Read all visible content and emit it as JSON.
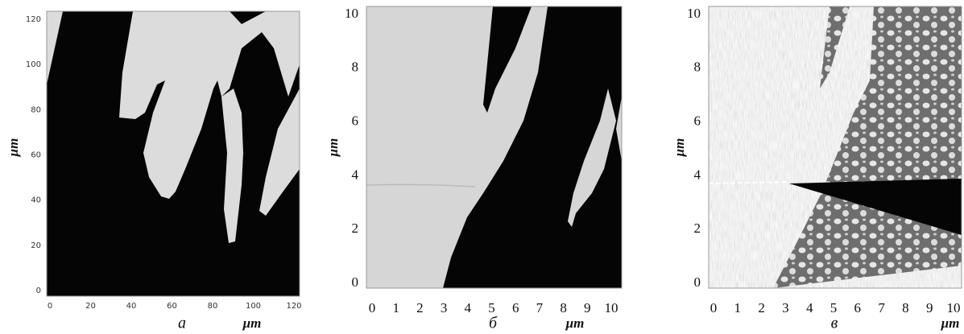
{
  "panels": [
    {
      "caption": "а",
      "y_label": "μm",
      "x_label": "μm",
      "xticks": [
        0,
        20,
        40,
        60,
        80,
        100,
        120
      ],
      "yticks": [
        0,
        20,
        40,
        60,
        80,
        100,
        120
      ]
    },
    {
      "caption": "б",
      "y_label": "μm",
      "x_label": "μm",
      "xticks": [
        0,
        1,
        2,
        3,
        4,
        5,
        6,
        7,
        8,
        9,
        10
      ],
      "yticks": [
        0,
        2,
        4,
        6,
        8,
        10
      ]
    },
    {
      "caption": "в",
      "y_label": "μm",
      "x_label": "μm",
      "xticks": [
        0,
        1,
        2,
        3,
        4,
        5,
        6,
        7,
        8,
        9,
        10
      ],
      "yticks": [
        0,
        2,
        4,
        6,
        8,
        10
      ]
    }
  ]
}
